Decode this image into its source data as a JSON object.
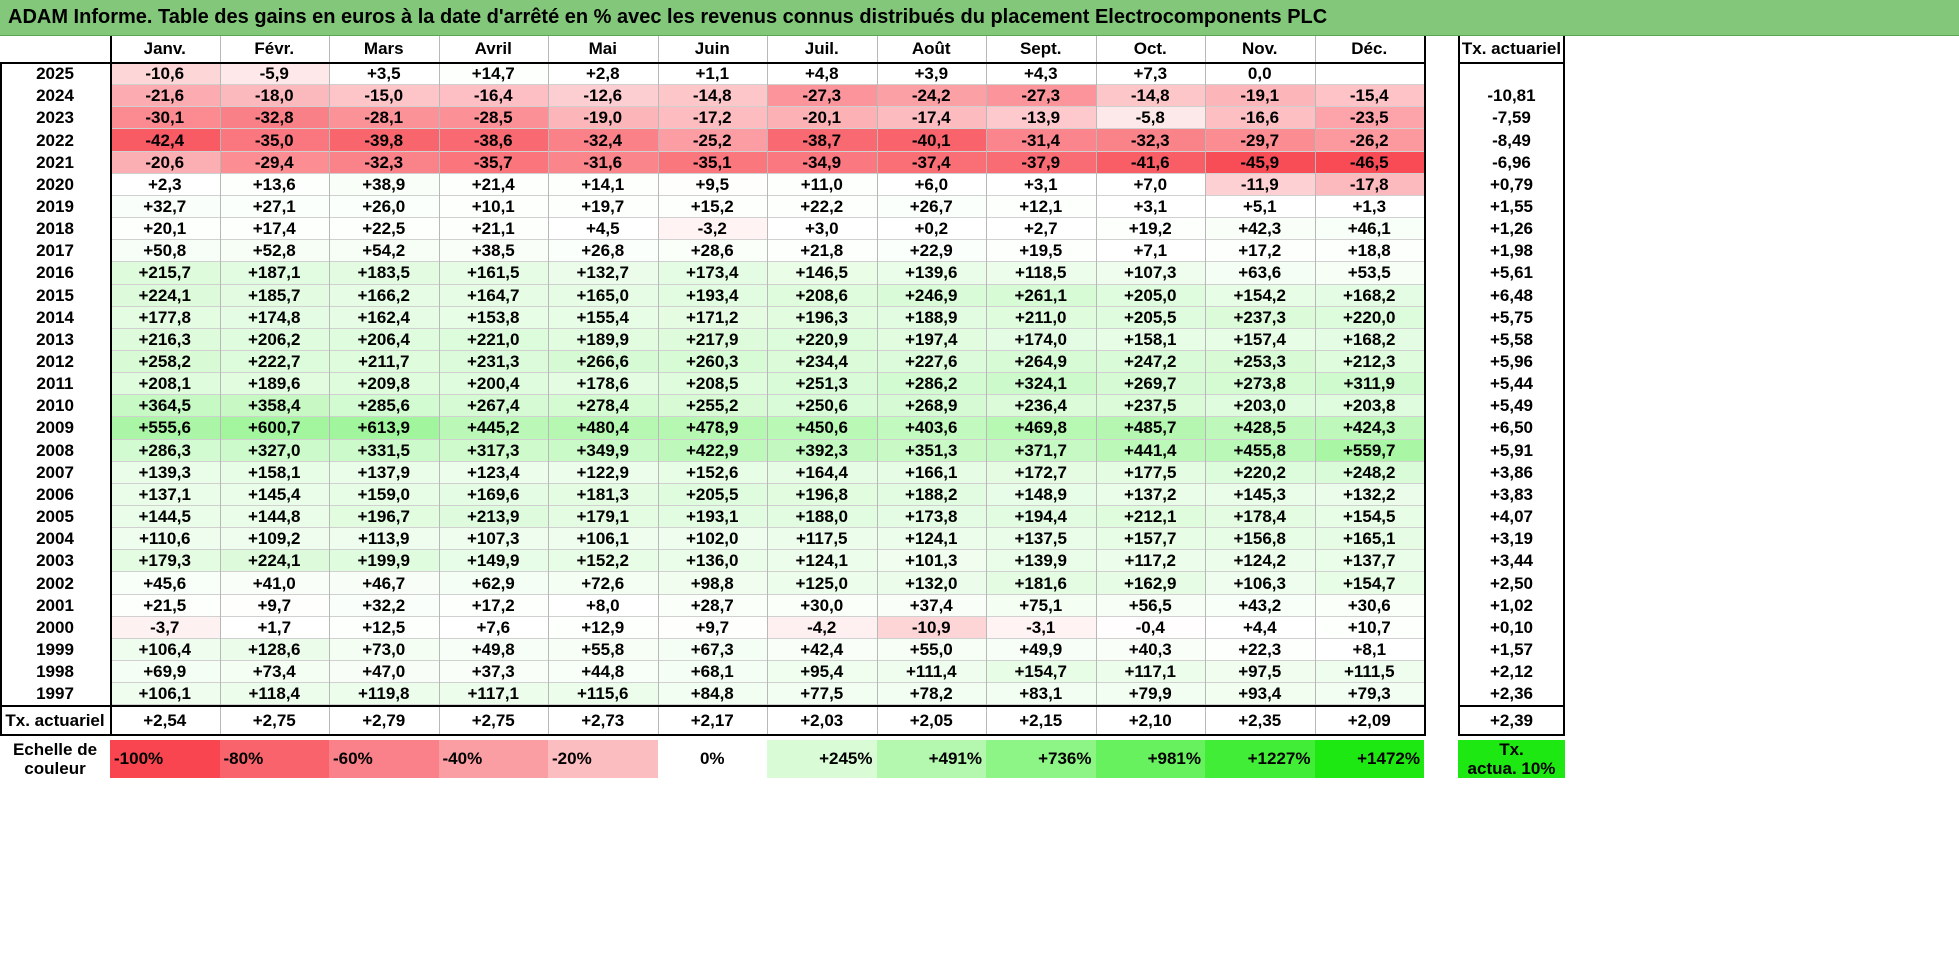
{
  "title": "ADAM Informe. Table des gains en euros à la date d'arrêté en % avec les revenus connus distribués du placement Electrocomponents PLC",
  "months": [
    "Janv.",
    "Févr.",
    "Mars",
    "Avril",
    "Mai",
    "Juin",
    "Juil.",
    "Août",
    "Sept.",
    "Oct.",
    "Nov.",
    "Déc."
  ],
  "rate_header": "Tx. actuariel",
  "rows": [
    {
      "year": "2025",
      "values": [
        "-10,6",
        "-5,9",
        "+3,5",
        "+14,7",
        "+2,8",
        "+1,1",
        "+4,8",
        "+3,9",
        "+4,3",
        "+7,3",
        "0,0",
        ""
      ],
      "rate": ""
    },
    {
      "year": "2024",
      "values": [
        "-21,6",
        "-18,0",
        "-15,0",
        "-16,4",
        "-12,6",
        "-14,8",
        "-27,3",
        "-24,2",
        "-27,3",
        "-14,8",
        "-19,1",
        "-15,4"
      ],
      "rate": "-10,81"
    },
    {
      "year": "2023",
      "values": [
        "-30,1",
        "-32,8",
        "-28,1",
        "-28,5",
        "-19,0",
        "-17,2",
        "-20,1",
        "-17,4",
        "-13,9",
        "-5,8",
        "-16,6",
        "-23,5"
      ],
      "rate": "-7,59"
    },
    {
      "year": "2022",
      "values": [
        "-42,4",
        "-35,0",
        "-39,8",
        "-38,6",
        "-32,4",
        "-25,2",
        "-38,7",
        "-40,1",
        "-31,4",
        "-32,3",
        "-29,7",
        "-26,2"
      ],
      "rate": "-8,49"
    },
    {
      "year": "2021",
      "values": [
        "-20,6",
        "-29,4",
        "-32,3",
        "-35,7",
        "-31,6",
        "-35,1",
        "-34,9",
        "-37,4",
        "-37,9",
        "-41,6",
        "-45,9",
        "-46,5"
      ],
      "rate": "-6,96"
    },
    {
      "year": "2020",
      "values": [
        "+2,3",
        "+13,6",
        "+38,9",
        "+21,4",
        "+14,1",
        "+9,5",
        "+11,0",
        "+6,0",
        "+3,1",
        "+7,0",
        "-11,9",
        "-17,8"
      ],
      "rate": "+0,79"
    },
    {
      "year": "2019",
      "values": [
        "+32,7",
        "+27,1",
        "+26,0",
        "+10,1",
        "+19,7",
        "+15,2",
        "+22,2",
        "+26,7",
        "+12,1",
        "+3,1",
        "+5,1",
        "+1,3"
      ],
      "rate": "+1,55"
    },
    {
      "year": "2018",
      "values": [
        "+20,1",
        "+17,4",
        "+22,5",
        "+21,1",
        "+4,5",
        "-3,2",
        "+3,0",
        "+0,2",
        "+2,7",
        "+19,2",
        "+42,3",
        "+46,1"
      ],
      "rate": "+1,26"
    },
    {
      "year": "2017",
      "values": [
        "+50,8",
        "+52,8",
        "+54,2",
        "+38,5",
        "+26,8",
        "+28,6",
        "+21,8",
        "+22,9",
        "+19,5",
        "+7,1",
        "+17,2",
        "+18,8"
      ],
      "rate": "+1,98"
    },
    {
      "year": "2016",
      "values": [
        "+215,7",
        "+187,1",
        "+183,5",
        "+161,5",
        "+132,7",
        "+173,4",
        "+146,5",
        "+139,6",
        "+118,5",
        "+107,3",
        "+63,6",
        "+53,5"
      ],
      "rate": "+5,61"
    },
    {
      "year": "2015",
      "values": [
        "+224,1",
        "+185,7",
        "+166,2",
        "+164,7",
        "+165,0",
        "+193,4",
        "+208,6",
        "+246,9",
        "+261,1",
        "+205,0",
        "+154,2",
        "+168,2"
      ],
      "rate": "+6,48"
    },
    {
      "year": "2014",
      "values": [
        "+177,8",
        "+174,8",
        "+162,4",
        "+153,8",
        "+155,4",
        "+171,2",
        "+196,3",
        "+188,9",
        "+211,0",
        "+205,5",
        "+237,3",
        "+220,0"
      ],
      "rate": "+5,75"
    },
    {
      "year": "2013",
      "values": [
        "+216,3",
        "+206,2",
        "+206,4",
        "+221,0",
        "+189,9",
        "+217,9",
        "+220,9",
        "+197,4",
        "+174,0",
        "+158,1",
        "+157,4",
        "+168,2"
      ],
      "rate": "+5,58"
    },
    {
      "year": "2012",
      "values": [
        "+258,2",
        "+222,7",
        "+211,7",
        "+231,3",
        "+266,6",
        "+260,3",
        "+234,4",
        "+227,6",
        "+264,9",
        "+247,2",
        "+253,3",
        "+212,3"
      ],
      "rate": "+5,96"
    },
    {
      "year": "2011",
      "values": [
        "+208,1",
        "+189,6",
        "+209,8",
        "+200,4",
        "+178,6",
        "+208,5",
        "+251,3",
        "+286,2",
        "+324,1",
        "+269,7",
        "+273,8",
        "+311,9"
      ],
      "rate": "+5,44"
    },
    {
      "year": "2010",
      "values": [
        "+364,5",
        "+358,4",
        "+285,6",
        "+267,4",
        "+278,4",
        "+255,2",
        "+250,6",
        "+268,9",
        "+236,4",
        "+237,5",
        "+203,0",
        "+203,8"
      ],
      "rate": "+5,49"
    },
    {
      "year": "2009",
      "values": [
        "+555,6",
        "+600,7",
        "+613,9",
        "+445,2",
        "+480,4",
        "+478,9",
        "+450,6",
        "+403,6",
        "+469,8",
        "+485,7",
        "+428,5",
        "+424,3"
      ],
      "rate": "+6,50"
    },
    {
      "year": "2008",
      "values": [
        "+286,3",
        "+327,0",
        "+331,5",
        "+317,3",
        "+349,9",
        "+422,9",
        "+392,3",
        "+351,3",
        "+371,7",
        "+441,4",
        "+455,8",
        "+559,7"
      ],
      "rate": "+5,91"
    },
    {
      "year": "2007",
      "values": [
        "+139,3",
        "+158,1",
        "+137,9",
        "+123,4",
        "+122,9",
        "+152,6",
        "+164,4",
        "+166,1",
        "+172,7",
        "+177,5",
        "+220,2",
        "+248,2"
      ],
      "rate": "+3,86"
    },
    {
      "year": "2006",
      "values": [
        "+137,1",
        "+145,4",
        "+159,0",
        "+169,6",
        "+181,3",
        "+205,5",
        "+196,8",
        "+188,2",
        "+148,9",
        "+137,2",
        "+145,3",
        "+132,2"
      ],
      "rate": "+3,83"
    },
    {
      "year": "2005",
      "values": [
        "+144,5",
        "+144,8",
        "+196,7",
        "+213,9",
        "+179,1",
        "+193,1",
        "+188,0",
        "+173,8",
        "+194,4",
        "+212,1",
        "+178,4",
        "+154,5"
      ],
      "rate": "+4,07"
    },
    {
      "year": "2004",
      "values": [
        "+110,6",
        "+109,2",
        "+113,9",
        "+107,3",
        "+106,1",
        "+102,0",
        "+117,5",
        "+124,1",
        "+137,5",
        "+157,7",
        "+156,8",
        "+165,1"
      ],
      "rate": "+3,19"
    },
    {
      "year": "2003",
      "values": [
        "+179,3",
        "+224,1",
        "+199,9",
        "+149,9",
        "+152,2",
        "+136,0",
        "+124,1",
        "+101,3",
        "+139,9",
        "+117,2",
        "+124,2",
        "+137,7"
      ],
      "rate": "+3,44"
    },
    {
      "year": "2002",
      "values": [
        "+45,6",
        "+41,0",
        "+46,7",
        "+62,9",
        "+72,6",
        "+98,8",
        "+125,0",
        "+132,0",
        "+181,6",
        "+162,9",
        "+106,3",
        "+154,7"
      ],
      "rate": "+2,50"
    },
    {
      "year": "2001",
      "values": [
        "+21,5",
        "+9,7",
        "+32,2",
        "+17,2",
        "+8,0",
        "+28,7",
        "+30,0",
        "+37,4",
        "+75,1",
        "+56,5",
        "+43,2",
        "+30,6"
      ],
      "rate": "+1,02"
    },
    {
      "year": "2000",
      "values": [
        "-3,7",
        "+1,7",
        "+12,5",
        "+7,6",
        "+12,9",
        "+9,7",
        "-4,2",
        "-10,9",
        "-3,1",
        "-0,4",
        "+4,4",
        "+10,7"
      ],
      "rate": "+0,10"
    },
    {
      "year": "1999",
      "values": [
        "+106,4",
        "+128,6",
        "+73,0",
        "+49,8",
        "+55,8",
        "+67,3",
        "+42,4",
        "+55,0",
        "+49,9",
        "+40,3",
        "+22,3",
        "+8,1"
      ],
      "rate": "+1,57"
    },
    {
      "year": "1998",
      "values": [
        "+69,9",
        "+73,4",
        "+47,0",
        "+37,3",
        "+44,8",
        "+68,1",
        "+95,4",
        "+111,4",
        "+154,7",
        "+117,1",
        "+97,5",
        "+111,5"
      ],
      "rate": "+2,12"
    },
    {
      "year": "1997",
      "values": [
        "+106,1",
        "+118,4",
        "+119,8",
        "+117,1",
        "+115,6",
        "+84,8",
        "+77,5",
        "+78,2",
        "+83,1",
        "+79,9",
        "+93,4",
        "+79,3"
      ],
      "rate": "+2,36"
    }
  ],
  "footer": {
    "label": "Tx. actuariel",
    "values": [
      "+2,54",
      "+2,75",
      "+2,79",
      "+2,75",
      "+2,73",
      "+2,17",
      "+2,03",
      "+2,05",
      "+2,15",
      "+2,10",
      "+2,35",
      "+2,09"
    ],
    "rate": "+2,39"
  },
  "legend": {
    "label_line1": "Echelle de",
    "label_line2": "couleur",
    "items": [
      {
        "text": "-100%",
        "color": "#f8454f"
      },
      {
        "text": "-80%",
        "color": "#f9636b"
      },
      {
        "text": "-60%",
        "color": "#fa8189"
      },
      {
        "text": "-40%",
        "color": "#fb9ea4"
      },
      {
        "text": "-20%",
        "color": "#fcbdc1"
      },
      {
        "text": "0%",
        "color": "#ffffff"
      },
      {
        "text": "+245%",
        "color": "#d9fbd6"
      },
      {
        "text": "+491%",
        "color": "#b3f8ae"
      },
      {
        "text": "+736%",
        "color": "#8df486"
      },
      {
        "text": "+981%",
        "color": "#67f15e"
      },
      {
        "text": "+1227%",
        "color": "#41ed36"
      },
      {
        "text": "+1472%",
        "color": "#1ee812"
      }
    ],
    "rate_label_line1": "Tx.",
    "rate_label_line2": "actua. 10%",
    "rate_color": "#1ee812"
  },
  "colors": {
    "title_bar": "#82c77a",
    "negative_max": "#f8454f",
    "positive_max": "#1ee812"
  }
}
